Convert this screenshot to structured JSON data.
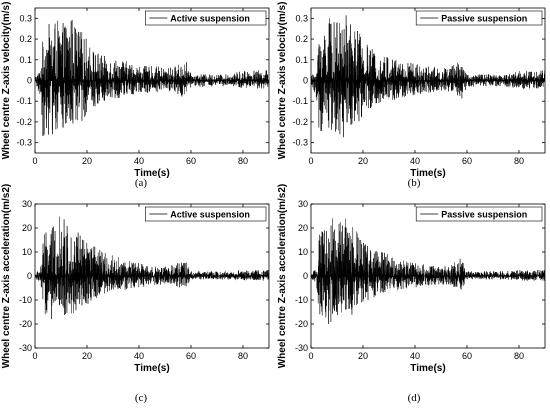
{
  "chart_data": [
    {
      "type": "line",
      "panel_label": "(a)",
      "xlabel": "Time(s)",
      "ylabel": "Wheel centre Z-axis velocity(m/s)",
      "xlim": [
        0,
        90
      ],
      "ylim": [
        -0.35,
        0.35
      ],
      "xticks": [
        0,
        20,
        40,
        60,
        80
      ],
      "yticks": [
        -0.3,
        -0.2,
        -0.1,
        0,
        0.1,
        0.2,
        0.3
      ],
      "ytick_labels": [
        "-0.3",
        "-0.2",
        "-0.1",
        "0",
        "0.1",
        "0.2",
        "0.3"
      ],
      "legend": "Active suspension",
      "legend_position": "top-right",
      "color": "#000000",
      "envelope": {
        "x": [
          0,
          2,
          3,
          4,
          6,
          8,
          10,
          12,
          14,
          16,
          18,
          20,
          22,
          24,
          26,
          30,
          34,
          38,
          42,
          46,
          50,
          54,
          58,
          60,
          65,
          70,
          75,
          80,
          85,
          90
        ],
        "upper": [
          0.02,
          0.05,
          0.2,
          0.26,
          0.28,
          0.3,
          0.27,
          0.29,
          0.32,
          0.26,
          0.24,
          0.2,
          0.16,
          0.14,
          0.12,
          0.11,
          0.1,
          0.08,
          0.07,
          0.07,
          0.06,
          0.07,
          0.1,
          0.03,
          0.03,
          0.03,
          0.03,
          0.05,
          0.05,
          0.05
        ],
        "lower": [
          -0.02,
          -0.08,
          -0.27,
          -0.27,
          -0.27,
          -0.26,
          -0.24,
          -0.27,
          -0.26,
          -0.22,
          -0.2,
          -0.16,
          -0.14,
          -0.12,
          -0.1,
          -0.09,
          -0.08,
          -0.07,
          -0.06,
          -0.06,
          -0.05,
          -0.06,
          -0.09,
          -0.03,
          -0.03,
          -0.03,
          -0.03,
          -0.04,
          -0.04,
          -0.04
        ]
      }
    },
    {
      "type": "line",
      "panel_label": "(b)",
      "xlabel": "Time(s)",
      "ylabel": "Wheel centre Z-axis velocity(m/s)",
      "xlim": [
        0,
        90
      ],
      "ylim": [
        -0.35,
        0.35
      ],
      "xticks": [
        0,
        20,
        40,
        60,
        80
      ],
      "yticks": [
        -0.3,
        -0.2,
        -0.1,
        0,
        0.1,
        0.2,
        0.3
      ],
      "ytick_labels": [
        "-0.3",
        "-0.2",
        "-0.1",
        "0",
        "0.1",
        "0.2",
        "0.3"
      ],
      "legend": "Passive suspension",
      "legend_position": "top-right",
      "color": "#000000",
      "envelope": {
        "x": [
          0,
          2,
          3,
          4,
          6,
          8,
          10,
          12,
          14,
          16,
          18,
          20,
          22,
          24,
          26,
          30,
          34,
          38,
          42,
          46,
          50,
          54,
          58,
          60,
          65,
          70,
          75,
          80,
          85,
          90
        ],
        "upper": [
          0.02,
          0.05,
          0.21,
          0.27,
          0.29,
          0.31,
          0.28,
          0.3,
          0.33,
          0.27,
          0.25,
          0.21,
          0.17,
          0.15,
          0.13,
          0.12,
          0.11,
          0.09,
          0.08,
          0.07,
          0.06,
          0.07,
          0.11,
          0.03,
          0.03,
          0.03,
          0.03,
          0.05,
          0.05,
          0.05
        ],
        "lower": [
          -0.02,
          -0.08,
          -0.28,
          -0.28,
          -0.28,
          -0.27,
          -0.25,
          -0.28,
          -0.27,
          -0.23,
          -0.21,
          -0.17,
          -0.15,
          -0.13,
          -0.11,
          -0.1,
          -0.09,
          -0.08,
          -0.07,
          -0.06,
          -0.05,
          -0.06,
          -0.1,
          -0.03,
          -0.03,
          -0.03,
          -0.03,
          -0.04,
          -0.04,
          -0.04
        ]
      }
    },
    {
      "type": "line",
      "panel_label": "(c)",
      "xlabel": "Time(s)",
      "ylabel": "Wheel centre Z-axis acceleration(m/s2)",
      "xlim": [
        0,
        90
      ],
      "ylim": [
        -30,
        30
      ],
      "xticks": [
        0,
        20,
        40,
        60,
        80
      ],
      "yticks": [
        -30,
        -20,
        -10,
        0,
        10,
        20,
        30
      ],
      "ytick_labels": [
        "-30",
        "-20",
        "-10",
        "0",
        "10",
        "20",
        "30"
      ],
      "legend": "Active suspension",
      "legend_position": "top-right",
      "color": "#000000",
      "envelope": {
        "x": [
          0,
          2,
          3,
          4,
          6,
          8,
          10,
          12,
          14,
          16,
          18,
          20,
          22,
          24,
          26,
          30,
          34,
          38,
          42,
          46,
          50,
          54,
          58,
          60,
          65,
          70,
          75,
          80,
          85,
          90
        ],
        "upper": [
          1,
          3,
          16,
          18,
          20,
          22,
          26,
          22,
          21,
          22,
          17,
          15,
          13,
          12,
          10,
          9,
          7,
          6,
          5,
          4,
          4,
          5,
          7,
          2,
          2,
          2,
          2,
          2.5,
          2.5,
          2.5
        ],
        "lower": [
          -1,
          -3,
          -15,
          -17,
          -19,
          -17,
          -16,
          -18,
          -16,
          -15,
          -13,
          -12,
          -10,
          -9,
          -8,
          -7,
          -6,
          -5,
          -4.5,
          -4,
          -3.5,
          -4,
          -6,
          -1.5,
          -1.5,
          -1.5,
          -1.5,
          -2,
          -2,
          -2
        ]
      }
    },
    {
      "type": "line",
      "panel_label": "(d)",
      "xlabel": "Time(s)",
      "ylabel": "Wheel centre Z-axis acceleration(m/s2)",
      "xlim": [
        0,
        90
      ],
      "ylim": [
        -30,
        30
      ],
      "xticks": [
        0,
        20,
        40,
        60,
        80
      ],
      "yticks": [
        -30,
        -20,
        -10,
        0,
        10,
        20,
        30
      ],
      "ytick_labels": [
        "-30",
        "-20",
        "-10",
        "0",
        "10",
        "20",
        "30"
      ],
      "legend": "Passive suspension",
      "legend_position": "top-right",
      "color": "#000000",
      "envelope": {
        "x": [
          0,
          2,
          3,
          4,
          6,
          8,
          10,
          12,
          14,
          16,
          18,
          20,
          22,
          24,
          26,
          30,
          34,
          38,
          42,
          46,
          50,
          54,
          58,
          60,
          65,
          70,
          75,
          80,
          85,
          90
        ],
        "upper": [
          1,
          3,
          17,
          19,
          21,
          26,
          22,
          23,
          25,
          22,
          18,
          16,
          14,
          12,
          11,
          9,
          7,
          6,
          5,
          4.5,
          4,
          5,
          8,
          2,
          2,
          2,
          2,
          2.5,
          2.5,
          2.5
        ],
        "lower": [
          -1,
          -3,
          -16,
          -18,
          -21,
          -19,
          -17,
          -19,
          -17,
          -16,
          -14,
          -12,
          -10,
          -9,
          -8,
          -7,
          -6,
          -5,
          -4.5,
          -4,
          -3.5,
          -4,
          -6.5,
          -1.5,
          -1.5,
          -1.5,
          -1.5,
          -2,
          -2,
          -2
        ]
      }
    }
  ]
}
